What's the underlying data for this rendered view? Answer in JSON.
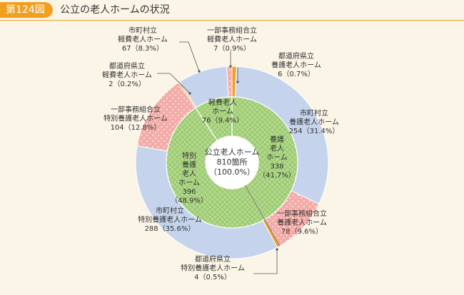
{
  "header": {
    "figure_label": "第124図",
    "title": "公立の老人ホームの状況"
  },
  "colors": {
    "badge": "#f0a020",
    "background": "#fbf5e7",
    "inner_green": "#b3d98c",
    "outer_blue": "#c5d4ec",
    "outer_pink": "#f4aca8",
    "outer_orange": "#f0a020",
    "leader": "#555555"
  },
  "chart_data": {
    "type": "pie",
    "center": {
      "line1": "公立老人ホーム",
      "line2": "810箇所",
      "line3": "（100.0%）",
      "total": 810
    },
    "inner_ring": [
      {
        "name_lines": [
          "軽費老人",
          "ホーム"
        ],
        "value_text": "76（9.4%）",
        "value": 76,
        "percent": 9.4
      },
      {
        "name_lines": [
          "養護",
          "老人",
          "ホーム"
        ],
        "value_text": "338\n（41.7%）",
        "value": 338,
        "percent": 41.7
      },
      {
        "name_lines": [
          "特別",
          "養護",
          "老人",
          "ホーム"
        ],
        "value_text": "396\n（48.9%）",
        "value": 396,
        "percent": 48.9
      }
    ],
    "outer_ring": [
      {
        "name_lines": [
          "都道府県立",
          "養護老人ホーム"
        ],
        "value_text": "6（0.7%）",
        "value": 6,
        "percent": 0.7,
        "fill": "orange"
      },
      {
        "name_lines": [
          "市町村立",
          "養護老人ホーム"
        ],
        "value_text": "254（31.4%）",
        "value": 254,
        "percent": 31.4,
        "fill": "blue"
      },
      {
        "name_lines": [
          "一部事務組合立",
          "養護老人ホーム"
        ],
        "value_text": "78（9.6%）",
        "value": 78,
        "percent": 9.6,
        "fill": "pink"
      },
      {
        "name_lines": [
          "都道府県立",
          "特別養護老人ホーム"
        ],
        "value_text": "4（0.5%）",
        "value": 4,
        "percent": 0.5,
        "fill": "orange"
      },
      {
        "name_lines": [
          "市町村立",
          "特別養護老人ホーム"
        ],
        "value_text": "288（35.6%）",
        "value": 288,
        "percent": 35.6,
        "fill": "blue"
      },
      {
        "name_lines": [
          "一部事務組合立",
          "特別養護老人ホーム"
        ],
        "value_text": "104（12.8%）",
        "value": 104,
        "percent": 12.8,
        "fill": "pink"
      },
      {
        "name_lines": [
          "都道府県立",
          "軽費老人ホーム"
        ],
        "value_text": "2（0.2%）",
        "value": 2,
        "percent": 0.2,
        "fill": "orange"
      },
      {
        "name_lines": [
          "市町村立",
          "軽費老人ホーム"
        ],
        "value_text": "67（8.3%）",
        "value": 67,
        "percent": 8.3,
        "fill": "blue"
      },
      {
        "name_lines": [
          "一部事務組合立",
          "軽費老人ホーム"
        ],
        "value_text": "7（0.9%）",
        "value": 7,
        "percent": 0.9,
        "fill": "pink"
      }
    ]
  }
}
